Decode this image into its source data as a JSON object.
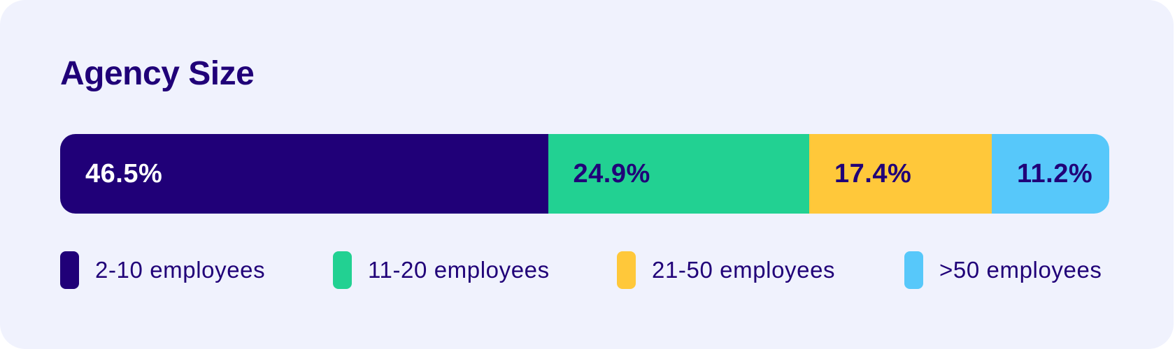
{
  "colors": {
    "background": "#F0F2FD",
    "title": "#200078",
    "dark_text": "#200078",
    "light_text": "#FFFFFF"
  },
  "chart_data": {
    "type": "bar",
    "stacked": true,
    "orientation": "horizontal",
    "title": "Agency Size",
    "value_unit": "%",
    "legend_position": "bottom",
    "grid": false,
    "series": [
      {
        "name": "2-10 employees",
        "value": 46.5,
        "label": "46.5%",
        "color": "#200078",
        "label_color": "#FFFFFF"
      },
      {
        "name": "11-20 employees",
        "value": 24.9,
        "label": "24.9%",
        "color": "#22D192",
        "label_color": "#200078"
      },
      {
        "name": "21-50 employees",
        "value": 17.4,
        "label": "17.4%",
        "color": "#FFC83A",
        "label_color": "#200078"
      },
      {
        "name": ">50 employees",
        "value": 11.2,
        "label": "11.2%",
        "color": "#57C8FA",
        "label_color": "#200078"
      }
    ]
  }
}
